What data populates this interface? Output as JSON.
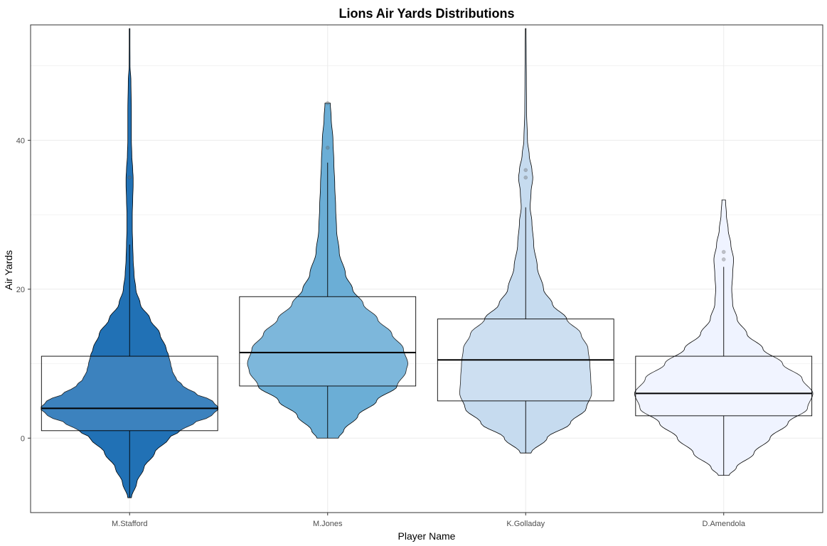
{
  "chart_data": {
    "type": "violin",
    "title": "Lions Air Yards Distributions",
    "xlabel": "Player Name",
    "ylabel": "Air Yards",
    "ylim": [
      -10,
      55.5
    ],
    "y_ticks": [
      0,
      20,
      40
    ],
    "grid": true,
    "categories": [
      "M.Stafford",
      "M.Jones",
      "K.Golladay",
      "D.Amendola"
    ],
    "series": [
      {
        "category": "M.Stafford",
        "color": "#2171b5",
        "box": {
          "q1": 1,
          "median": 4,
          "q3": 11,
          "whisker_low": -8,
          "whisker_high": 26
        },
        "violin": {
          "min": -8,
          "max": 55,
          "profile": [
            [
              -8,
              0.02
            ],
            [
              -6,
              0.08
            ],
            [
              -4,
              0.16
            ],
            [
              -2,
              0.28
            ],
            [
              0,
              0.44
            ],
            [
              1,
              0.57
            ],
            [
              2,
              0.72
            ],
            [
              3,
              0.92
            ],
            [
              4,
              1.0
            ],
            [
              5,
              0.93
            ],
            [
              6,
              0.74
            ],
            [
              7,
              0.6
            ],
            [
              8,
              0.52
            ],
            [
              9,
              0.48
            ],
            [
              10,
              0.46
            ],
            [
              11,
              0.44
            ],
            [
              12,
              0.41
            ],
            [
              14,
              0.34
            ],
            [
              16,
              0.23
            ],
            [
              18,
              0.12
            ],
            [
              20,
              0.07
            ],
            [
              22,
              0.05
            ],
            [
              24,
              0.04
            ],
            [
              26,
              0.035
            ],
            [
              28,
              0.03
            ],
            [
              30,
              0.03
            ],
            [
              32,
              0.035
            ],
            [
              34,
              0.04
            ],
            [
              35,
              0.04
            ],
            [
              36,
              0.035
            ],
            [
              38,
              0.025
            ],
            [
              40,
              0.02
            ],
            [
              44,
              0.02
            ],
            [
              48,
              0.015
            ],
            [
              50,
              0.005
            ],
            [
              55,
              0.003
            ]
          ]
        },
        "outliers": [
          35
        ]
      },
      {
        "category": "M.Jones",
        "color": "#6baed6",
        "box": {
          "q1": 7,
          "median": 11.5,
          "q3": 19,
          "whisker_low": 0,
          "whisker_high": 37
        },
        "violin": {
          "min": 0,
          "max": 45,
          "profile": [
            [
              0,
              0.12
            ],
            [
              1,
              0.18
            ],
            [
              3,
              0.34
            ],
            [
              5,
              0.55
            ],
            [
              7,
              0.78
            ],
            [
              9,
              0.88
            ],
            [
              10,
              0.9
            ],
            [
              12,
              0.85
            ],
            [
              14,
              0.72
            ],
            [
              16,
              0.56
            ],
            [
              18,
              0.4
            ],
            [
              20,
              0.28
            ],
            [
              22,
              0.2
            ],
            [
              25,
              0.13
            ],
            [
              28,
              0.1
            ],
            [
              31,
              0.09
            ],
            [
              34,
              0.08
            ],
            [
              37,
              0.07
            ],
            [
              40,
              0.06
            ],
            [
              43,
              0.04
            ],
            [
              45,
              0.03
            ]
          ]
        },
        "outliers": [
          39,
          45
        ]
      },
      {
        "category": "K.Golladay",
        "color": "#c6dbef",
        "box": {
          "q1": 5,
          "median": 10.5,
          "q3": 16,
          "whisker_low": -2,
          "whisker_high": 31
        },
        "violin": {
          "min": -2,
          "max": 55,
          "profile": [
            [
              -2,
              0.06
            ],
            [
              0,
              0.24
            ],
            [
              2,
              0.5
            ],
            [
              4,
              0.68
            ],
            [
              6,
              0.74
            ],
            [
              8,
              0.73
            ],
            [
              10,
              0.72
            ],
            [
              12,
              0.7
            ],
            [
              14,
              0.62
            ],
            [
              16,
              0.46
            ],
            [
              18,
              0.3
            ],
            [
              20,
              0.2
            ],
            [
              23,
              0.13
            ],
            [
              26,
              0.09
            ],
            [
              29,
              0.07
            ],
            [
              31,
              0.05
            ],
            [
              33,
              0.06
            ],
            [
              35,
              0.08
            ],
            [
              36,
              0.07
            ],
            [
              38,
              0.04
            ],
            [
              40,
              0.02
            ],
            [
              44,
              0.01
            ],
            [
              48,
              0.008
            ],
            [
              52,
              0.006
            ],
            [
              55,
              0.004
            ]
          ]
        },
        "outliers": [
          35,
          36
        ]
      },
      {
        "category": "D.Amendola",
        "color": "#eff3ff",
        "box": {
          "q1": 3,
          "median": 6,
          "q3": 11,
          "whisker_low": -5,
          "whisker_high": 23
        },
        "violin": {
          "min": -5,
          "max": 32,
          "profile": [
            [
              -5,
              0.06
            ],
            [
              -4,
              0.14
            ],
            [
              -2,
              0.34
            ],
            [
              0,
              0.52
            ],
            [
              2,
              0.72
            ],
            [
              4,
              0.94
            ],
            [
              6,
              1.0
            ],
            [
              8,
              0.88
            ],
            [
              10,
              0.66
            ],
            [
              12,
              0.44
            ],
            [
              14,
              0.26
            ],
            [
              16,
              0.15
            ],
            [
              18,
              0.1
            ],
            [
              20,
              0.09
            ],
            [
              22,
              0.1
            ],
            [
              24,
              0.11
            ],
            [
              26,
              0.08
            ],
            [
              28,
              0.05
            ],
            [
              30,
              0.03
            ],
            [
              32,
              0.02
            ]
          ]
        },
        "outliers": [
          24,
          25
        ]
      }
    ]
  }
}
